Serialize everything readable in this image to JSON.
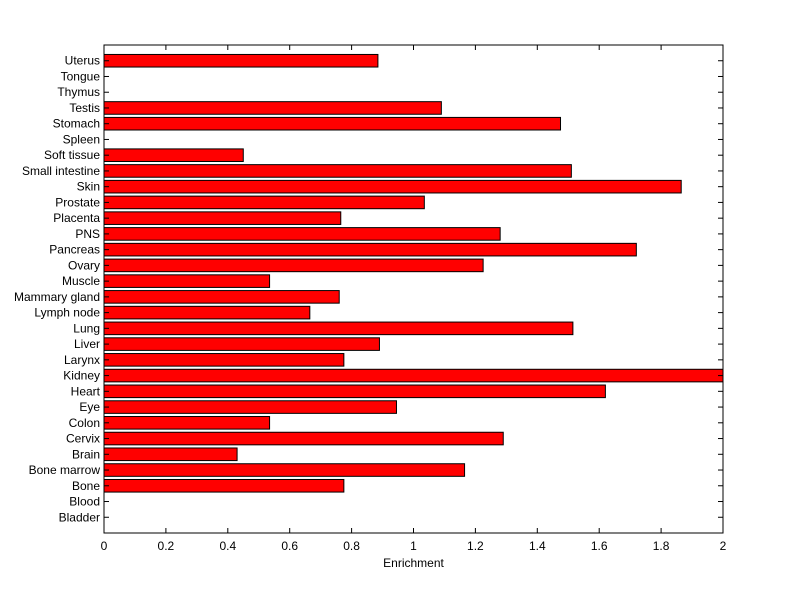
{
  "chart_data": {
    "type": "bar",
    "orientation": "horizontal",
    "title": "",
    "xlabel": "Enrichment",
    "ylabel": "",
    "xlim": [
      0,
      2
    ],
    "xticks": [
      0,
      0.2,
      0.4,
      0.6,
      0.8,
      1,
      1.2,
      1.4,
      1.6,
      1.8,
      2
    ],
    "xtick_labels": [
      "0",
      "0.2",
      "0.4",
      "0.6",
      "0.8",
      "1",
      "1.2",
      "1.4",
      "1.6",
      "1.8",
      "2"
    ],
    "grid": false,
    "bar_color": "#ff0000",
    "bar_edge_color": "#000000",
    "categories_bottom_to_top": [
      "Bladder",
      "Blood",
      "Bone",
      "Bone marrow",
      "Brain",
      "Cervix",
      "Colon",
      "Eye",
      "Heart",
      "Kidney",
      "Larynx",
      "Liver",
      "Lung",
      "Lymph node",
      "Mammary gland",
      "Muscle",
      "Ovary",
      "Pancreas",
      "PNS",
      "Placenta",
      "Prostate",
      "Skin",
      "Small intestine",
      "Soft tissue",
      "Spleen",
      "Stomach",
      "Testis",
      "Thymus",
      "Tongue",
      "Uterus"
    ],
    "values": [
      0,
      0,
      0.775,
      1.165,
      0.43,
      1.29,
      0.535,
      0.945,
      1.62,
      2.0,
      0.775,
      0.89,
      1.515,
      0.665,
      0.76,
      0.535,
      1.225,
      1.72,
      1.28,
      0.765,
      1.035,
      1.865,
      1.51,
      0.45,
      0,
      1.475,
      1.09,
      0,
      0,
      0.885
    ]
  }
}
